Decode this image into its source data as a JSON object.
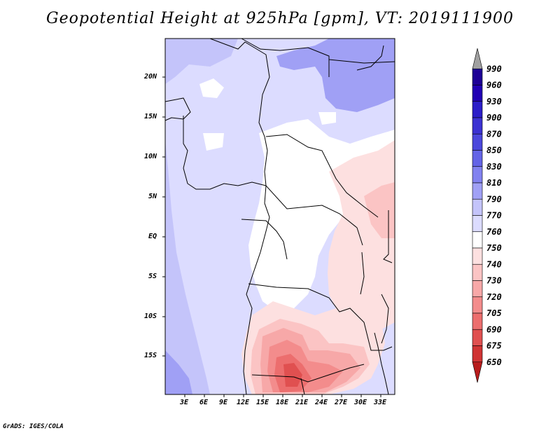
{
  "title": "Geopotential Height at 925hPa [gpm], VT: 2019111900",
  "credit": "GrADS: IGES/COLA",
  "latitude_labels": [
    "20N",
    "15N",
    "10N",
    "5N",
    "EQ",
    "5S",
    "10S",
    "15S"
  ],
  "longitude_labels": [
    "3E",
    "6E",
    "9E",
    "12E",
    "15E",
    "18E",
    "21E",
    "24E",
    "27E",
    "30E",
    "33E"
  ],
  "colorbar": {
    "levels": [
      "990",
      "960",
      "930",
      "900",
      "870",
      "850",
      "830",
      "810",
      "790",
      "770",
      "760",
      "750",
      "740",
      "730",
      "720",
      "705",
      "690",
      "675",
      "650"
    ],
    "colors": [
      "#a0a0a0",
      "#1e0096",
      "#2200b4",
      "#2c1ec8",
      "#3c32d2",
      "#4c48dc",
      "#6464e6",
      "#8282f0",
      "#a0a0f5",
      "#c4c4fa",
      "#dcdcff",
      "#ffffff",
      "#fde0e0",
      "#fbc4c4",
      "#f7a8a8",
      "#f38c8c",
      "#ec6e6e",
      "#e05050",
      "#d03434",
      "#b81c1c"
    ]
  }
}
